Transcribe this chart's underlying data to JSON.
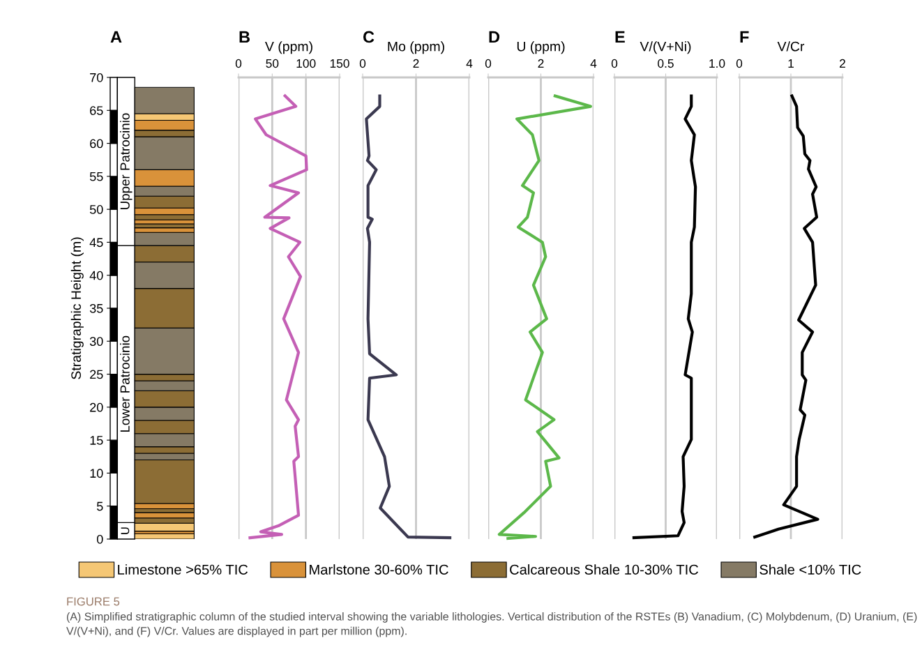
{
  "chart_data": [
    {
      "type": "bar",
      "stacked": true,
      "categories": [
        null
      ],
      "tick_labels": "y",
      "title": "A",
      "ylabel": "Stratigraphic Height (m)",
      "ylim": [
        0,
        70
      ],
      "yticks": [
        0,
        5,
        10,
        15,
        20,
        25,
        30,
        35,
        40,
        45,
        50,
        55,
        60,
        65,
        70
      ],
      "annotations": [
        "Upper Patrocinio",
        "Lower Patrocinio",
        "U",
        "FIGURE 5",
        "(A) Simplified stratigraphic column of the studied interval showing the variable lithologies. Vertical distribution of the RSTEs (B) Vanadium, (C) Molybdenum, (D) Uranium, (E) V/(V+Ni), and (F) V/Cr. Values are displayed in part per million (ppm)."
      ],
      "series": [
        {
          "name": "Limestone >65% TIC",
          "color": "#f5c775",
          "values": [
            0.8
          ]
        },
        {
          "name": "Marlstone 30-60% TIC",
          "color": "#d9923a",
          "values": [
            0.4
          ]
        },
        {
          "color": "#f5c775",
          "values": [
            1.2
          ]
        },
        {
          "name": "Calcareous Shale 10-30% TIC",
          "color": "#8c6d35",
          "values": [
            0.8
          ]
        },
        {
          "color": "#d9923a",
          "values": [
            0.8
          ]
        },
        {
          "color": "#8c6d35",
          "values": [
            0.6
          ]
        },
        {
          "color": "#d9923a",
          "values": [
            0.8
          ]
        },
        {
          "color": "#8c6d35",
          "values": [
            6.6
          ]
        },
        {
          "name": "Shale <10% TIC",
          "color": "#857a65",
          "values": [
            1
          ]
        },
        {
          "color": "#8c6d35",
          "values": [
            1
          ]
        },
        {
          "color": "#857a65",
          "values": [
            2
          ]
        },
        {
          "color": "#8c6d35",
          "values": [
            2
          ]
        },
        {
          "color": "#857a65",
          "values": [
            2
          ]
        },
        {
          "color": "#8c6d35",
          "values": [
            2.5
          ]
        },
        {
          "color": "#857a65",
          "values": [
            1.5
          ]
        },
        {
          "color": "#8c6d35",
          "values": [
            1
          ]
        },
        {
          "color": "#857a65",
          "values": [
            7
          ]
        },
        {
          "color": "#8c6d35",
          "values": [
            6
          ]
        },
        {
          "color": "#857a65",
          "values": [
            4
          ]
        },
        {
          "color": "#8c6d35",
          "values": [
            2.5
          ]
        },
        {
          "color": "#857a65",
          "values": [
            2
          ]
        },
        {
          "color": "#d9923a",
          "values": [
            0.7
          ]
        },
        {
          "color": "#8c6d35",
          "values": [
            0.6
          ]
        },
        {
          "color": "#d9923a",
          "values": [
            0.6
          ]
        },
        {
          "color": "#8c6d35",
          "values": [
            0.8
          ]
        },
        {
          "color": "#d9923a",
          "values": [
            1
          ]
        },
        {
          "color": "#8c6d35",
          "values": [
            1.8
          ]
        },
        {
          "color": "#857a65",
          "values": [
            1.5
          ]
        },
        {
          "color": "#d9923a",
          "values": [
            2.5
          ]
        },
        {
          "color": "#857a65",
          "values": [
            5
          ]
        },
        {
          "color": "#8c6d35",
          "values": [
            1
          ]
        },
        {
          "color": "#d9923a",
          "values": [
            1.5
          ]
        },
        {
          "color": "#f5c775",
          "values": [
            1
          ]
        },
        {
          "color": "#857a65",
          "values": [
            4
          ]
        }
      ],
      "legend": "bottom"
    },
    {
      "type": "line",
      "title": "B",
      "xlabel": "V (ppm)",
      "orientation": "horizontal",
      "xlim": [
        0,
        150
      ],
      "xticks": [
        0,
        50,
        100,
        150
      ],
      "ylim": [
        0,
        70
      ],
      "tick_labels": "x",
      "grid": "x",
      "series": [
        {
          "color": "#c45fb5",
          "x": [
            67.2,
            65.6,
            63.7,
            61.3,
            58.1,
            56,
            53.6,
            52.5,
            48.8,
            48.7,
            47.1,
            45,
            42.8,
            39.8,
            33.4,
            28.3,
            21.1,
            18.1,
            17.1,
            12.5,
            11.8,
            3.6,
            2.0,
            1.1,
            0.7,
            0.2
          ],
          "values": [
            69,
            85,
            25,
            41,
            100,
            101,
            47,
            89,
            39,
            75,
            47,
            91,
            74,
            92,
            67,
            89,
            71,
            89,
            84,
            89,
            82,
            89,
            59,
            33,
            64,
            17
          ]
        }
      ]
    },
    {
      "type": "line",
      "title": "C",
      "xlabel": "Mo (ppm)",
      "orientation": "horizontal",
      "xlim": [
        0,
        4
      ],
      "xticks": [
        0,
        2,
        4
      ],
      "ylim": [
        0,
        70
      ],
      "tick_labels": "x",
      "grid": "x",
      "series": [
        {
          "color": "#3b3950",
          "x": [
            67.2,
            65.6,
            63.7,
            58.1,
            57.4,
            56,
            53.6,
            48.8,
            48.5,
            47.1,
            45,
            33.4,
            28.1,
            24.9,
            24.4,
            18.1,
            12.5,
            8.0,
            4.7,
            0.3,
            0.2
          ],
          "values": [
            0.64,
            0.64,
            0.14,
            0.24,
            0.18,
            0.51,
            0.2,
            0.2,
            0.36,
            0.18,
            0.26,
            0.2,
            0.26,
            1.26,
            0.26,
            0.2,
            0.82,
            1.0,
            0.66,
            1.7,
            3.27
          ]
        }
      ]
    },
    {
      "type": "line",
      "title": "D",
      "xlabel": "U (ppm)",
      "orientation": "horizontal",
      "xlim": [
        0,
        4
      ],
      "xticks": [
        0,
        2,
        4
      ],
      "ylim": [
        0,
        70
      ],
      "tick_labels": "x",
      "grid": "x",
      "series": [
        {
          "color": "#5cb84a",
          "x": [
            67.2,
            65.6,
            63.7,
            61.3,
            57.4,
            53.6,
            52.5,
            48.8,
            47.3,
            45,
            42.8,
            38.5,
            33.4,
            31.4,
            28.3,
            24.7,
            21.1,
            18.1,
            16.3,
            12.3,
            11.8,
            8.0,
            4.0,
            0.7,
            0.4,
            0.1
          ],
          "values": [
            2.54,
            3.89,
            1.09,
            1.68,
            1.93,
            1.3,
            1.72,
            1.49,
            1.14,
            2.06,
            2.18,
            1.72,
            2.22,
            1.59,
            2.06,
            1.74,
            1.42,
            2.5,
            1.87,
            2.69,
            2.18,
            2.37,
            1.36,
            0.42,
            1.8,
            0.75
          ]
        }
      ]
    },
    {
      "type": "line",
      "title": "E",
      "xlabel": "V/(V+Ni)",
      "orientation": "horizontal",
      "xlim": [
        0,
        1.0
      ],
      "xticks": [
        0,
        0.5,
        {
          "value": 1.0,
          "label": "1.0"
        }
      ],
      "ylim": [
        0,
        70
      ],
      "tick_labels": "x",
      "grid": "x",
      "series": [
        {
          "color": "#000000",
          "x": [
            67.2,
            65.6,
            63.7,
            61.3,
            57.4,
            53.4,
            47.3,
            45,
            37.2,
            33.4,
            31.4,
            24.9,
            24.4,
            15.1,
            12.5,
            8.0,
            4.2,
            2.5,
            0.5,
            0.2
          ],
          "values": [
            0.75,
            0.75,
            0.69,
            0.78,
            0.75,
            0.79,
            0.78,
            0.75,
            0.75,
            0.72,
            0.76,
            0.69,
            0.75,
            0.75,
            0.67,
            0.68,
            0.66,
            0.68,
            0.62,
            0.19
          ]
        }
      ]
    },
    {
      "type": "line",
      "title": "F",
      "xlabel": "V/Cr",
      "orientation": "horizontal",
      "xlim": [
        0,
        2
      ],
      "xticks": [
        0,
        1,
        2
      ],
      "ylim": [
        0,
        70
      ],
      "tick_labels": "x",
      "grid": "x",
      "series": [
        {
          "color": "#000000",
          "x": [
            67.2,
            65.6,
            62.4,
            61.1,
            58.4,
            57.4,
            56.1,
            53.4,
            52.3,
            48.8,
            47.1,
            45,
            38.5,
            33.2,
            31.4,
            28.3,
            24.9,
            24.1,
            19.6,
            18.8,
            15.1,
            12.5,
            8.0,
            5.2,
            3.0,
            1.5,
            0.3
          ],
          "values": [
            1.02,
            1.11,
            1.13,
            1.24,
            1.27,
            1.37,
            1.34,
            1.49,
            1.42,
            1.5,
            1.26,
            1.42,
            1.48,
            1.15,
            1.42,
            1.22,
            1.22,
            1.29,
            1.18,
            1.27,
            1.16,
            1.11,
            1.11,
            0.86,
            1.52,
            0.76,
            0.3
          ]
        }
      ]
    }
  ]
}
